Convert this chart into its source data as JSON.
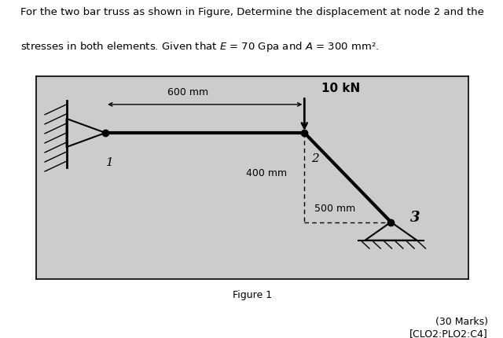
{
  "figure_caption": "Figure 1",
  "marks_text": "(30 Marks)",
  "clo_text": "[CLO2:PLO2:C4]",
  "bg_color": "#cccccc",
  "line1": "For the two bar truss as shown in Figure, Determine the displacement at node 2 and the",
  "line2": "stresses in both elements. Given that $E$ = 70 Gpa and $A$ = 300 mm².",
  "dim_600": "600 mm",
  "dim_400": "400 mm",
  "dim_500": "500 mm",
  "force_label": "10 kN",
  "label1": "1",
  "label2": "2",
  "label3": "3"
}
